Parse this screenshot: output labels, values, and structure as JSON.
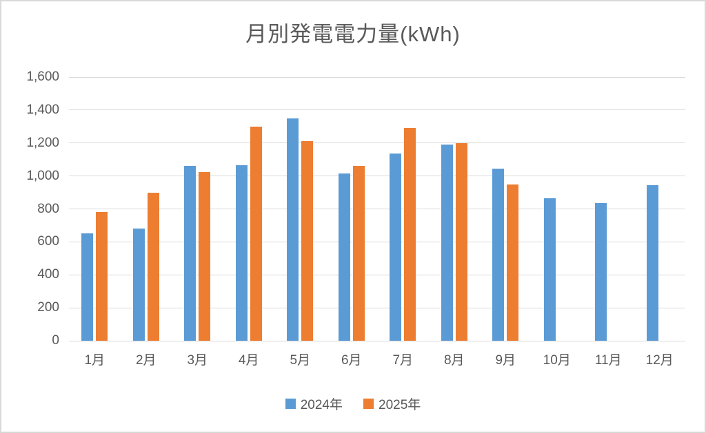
{
  "chart_data": {
    "type": "bar",
    "title": "月別発電電力量(kWh)",
    "xlabel": "",
    "ylabel": "",
    "categories": [
      "1月",
      "2月",
      "3月",
      "4月",
      "5月",
      "6月",
      "7月",
      "8月",
      "9月",
      "10月",
      "11月",
      "12月"
    ],
    "series": [
      {
        "name": "2024年",
        "color": "#5B9BD5",
        "values": [
          650,
          680,
          1060,
          1065,
          1350,
          1015,
          1135,
          1190,
          1045,
          865,
          835,
          945
        ]
      },
      {
        "name": "2025年",
        "color": "#ED7D31",
        "values": [
          780,
          900,
          1025,
          1300,
          1210,
          1060,
          1290,
          1200,
          950,
          null,
          null,
          null
        ]
      }
    ],
    "ylim": [
      0,
      1600
    ],
    "ytick_step": 200,
    "ytick_labels": [
      "0",
      "200",
      "400",
      "600",
      "800",
      "1,000",
      "1,200",
      "1,400",
      "1,600"
    ],
    "grid": true,
    "legend_position": "bottom",
    "colors": {
      "text": "#595959",
      "gridline": "#D9D9D9",
      "background": "#FFFFFF",
      "series_2024": "#5B9BD5",
      "series_2025": "#ED7D31"
    }
  }
}
